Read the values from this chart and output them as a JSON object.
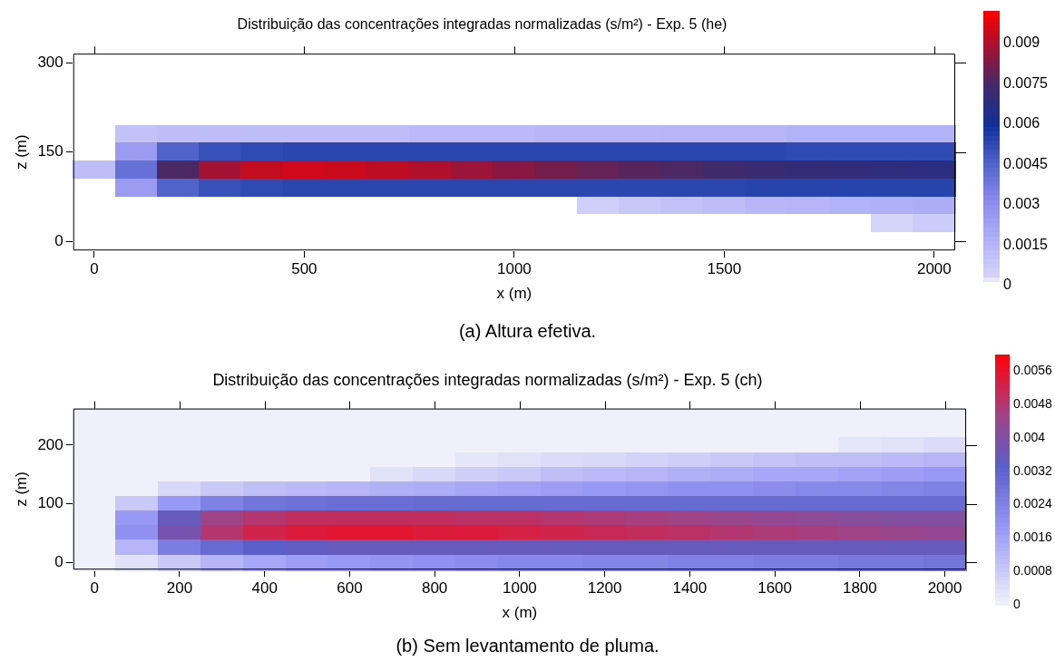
{
  "chart_data": [
    {
      "type": "heatmap",
      "title": "Distribuição das concentrações integradas normalizadas (s/m²) - Exp. 5 (he)",
      "xlabel": "x (m)",
      "ylabel": "z (m)",
      "annotations": [
        "(a) Altura efetiva."
      ],
      "categories": [
        "0",
        null,
        null,
        null,
        null,
        "500",
        null,
        null,
        null,
        null,
        "1000",
        null,
        null,
        null,
        null,
        "1500",
        null,
        null,
        null,
        null,
        "2000"
      ],
      "y_categories": [
        "300",
        null,
        null,
        null,
        null,
        "150",
        null,
        null,
        null,
        null,
        "0"
      ],
      "clim": [
        0,
        0.0102
      ],
      "cticks": [
        0,
        0.0015,
        0.003,
        0.0045,
        0.006,
        0.0075,
        0.009
      ],
      "grid": false,
      "legend": false,
      "cells": [
        [
          0,
          0,
          0,
          0,
          0,
          0,
          0,
          0,
          0,
          0,
          0,
          0,
          0,
          0,
          0,
          0,
          0,
          0,
          0,
          0,
          0
        ],
        [
          0,
          0,
          0,
          0,
          0,
          0,
          0,
          0,
          0,
          0,
          0,
          0,
          0,
          0,
          0,
          0,
          0,
          0,
          0,
          0,
          0
        ],
        [
          0,
          0,
          0,
          0,
          0,
          0,
          0,
          0,
          0,
          0,
          0,
          0,
          0,
          0,
          0,
          0,
          0,
          0,
          0,
          0,
          0
        ],
        [
          0,
          0,
          0,
          0,
          0,
          0,
          0,
          0,
          0,
          0,
          0,
          0,
          0,
          0,
          0,
          0,
          0,
          0,
          0,
          0,
          0
        ],
        [
          0,
          0.001,
          0.0012,
          0.0012,
          0.0012,
          0.0012,
          0.0012,
          0.0012,
          0.0013,
          0.0013,
          0.0013,
          0.0014,
          0.0014,
          0.0014,
          0.0015,
          0.0015,
          0.0015,
          0.0016,
          0.0016,
          0.0016,
          0.0016
        ],
        [
          0,
          0.0025,
          0.0045,
          0.005,
          0.0052,
          0.0053,
          0.0053,
          0.0053,
          0.0053,
          0.0053,
          0.0053,
          0.0053,
          0.0053,
          0.0053,
          0.0053,
          0.0053,
          0.0053,
          0.0052,
          0.0052,
          0.0052,
          0.0052
        ],
        [
          0.0012,
          0.004,
          0.0075,
          0.0088,
          0.0093,
          0.0095,
          0.0094,
          0.0092,
          0.009,
          0.0087,
          0.0084,
          0.0081,
          0.0079,
          0.0077,
          0.0075,
          0.0073,
          0.0071,
          0.007,
          0.0069,
          0.0068,
          0.0067
        ],
        [
          0,
          0.0025,
          0.0045,
          0.005,
          0.0052,
          0.0053,
          0.0053,
          0.0053,
          0.0053,
          0.0053,
          0.0053,
          0.0053,
          0.0053,
          0.0053,
          0.0053,
          0.0053,
          0.0054,
          0.0054,
          0.0054,
          0.0054,
          0.0054
        ],
        [
          0,
          0,
          0,
          0,
          0,
          0,
          0,
          0,
          0,
          0,
          0,
          0,
          0.0005,
          0.0008,
          0.001,
          0.0012,
          0.0014,
          0.0015,
          0.0016,
          0.0017,
          0.0018
        ],
        [
          0,
          0,
          0,
          0,
          0,
          0,
          0,
          0,
          0,
          0,
          0,
          0,
          0,
          0,
          0,
          0,
          0,
          0,
          0,
          0.0003,
          0.0006
        ],
        [
          0,
          0,
          0,
          0,
          0,
          0,
          0,
          0,
          0,
          0,
          0,
          0,
          0,
          0,
          0,
          0,
          0,
          0,
          0,
          0,
          0
        ]
      ]
    },
    {
      "type": "heatmap",
      "title": "Distribuição das concentrações integradas normalizadas (s/m²) - Exp. 5 (ch)",
      "xlabel": "x (m)",
      "ylabel": "z (m)",
      "annotations": [
        "(b) Sem levantamento de pluma."
      ],
      "categories": [
        "0",
        null,
        "200",
        null,
        "400",
        null,
        "600",
        null,
        "800",
        null,
        "1000",
        null,
        "1200",
        null,
        "1400",
        null,
        "1600",
        null,
        "1800",
        null,
        "2000"
      ],
      "y_categories": [
        null,
        null,
        "200",
        null,
        null,
        null,
        "100",
        null,
        null,
        null,
        "0"
      ],
      "clim": [
        0,
        0.006
      ],
      "cticks": [
        0,
        0.0008,
        0.0016,
        0.0024,
        0.0032,
        0.004,
        0.0048,
        0.0056
      ],
      "grid": false,
      "legend": false,
      "cells": [
        [
          0,
          0,
          0,
          0,
          0,
          0,
          0,
          0,
          0,
          0,
          0,
          0,
          0,
          0,
          0,
          0,
          0,
          0,
          0,
          0,
          0
        ],
        [
          0,
          0,
          0,
          0,
          0,
          0,
          0,
          0,
          0,
          0,
          0,
          0,
          0,
          0,
          0,
          0,
          0,
          0,
          0,
          0,
          0
        ],
        [
          0,
          0,
          0,
          0,
          0,
          0,
          0,
          0,
          0,
          0,
          0,
          0,
          0,
          0,
          0,
          0,
          0,
          0,
          0.0002,
          0.0003,
          0.0004
        ],
        [
          0,
          0,
          0,
          0,
          0,
          0,
          0,
          0,
          0,
          0.0002,
          0.0003,
          0.0004,
          0.0005,
          0.0006,
          0.0007,
          0.0008,
          0.0009,
          0.001,
          0.001,
          0.0011,
          0.0012
        ],
        [
          0,
          0,
          0,
          0,
          0,
          0,
          0,
          0.0003,
          0.0005,
          0.0007,
          0.0008,
          0.001,
          0.0011,
          0.0012,
          0.0013,
          0.0014,
          0.0015,
          0.0015,
          0.0016,
          0.0017,
          0.0018
        ],
        [
          0,
          0,
          0.0005,
          0.0008,
          0.001,
          0.0011,
          0.0012,
          0.0013,
          0.0014,
          0.0015,
          0.0016,
          0.0017,
          0.0018,
          0.0019,
          0.002,
          0.002,
          0.0021,
          0.0022,
          0.0022,
          0.0023,
          0.0024
        ],
        [
          0,
          0.0008,
          0.0018,
          0.0024,
          0.0027,
          0.0028,
          0.0029,
          0.0029,
          0.003,
          0.003,
          0.003,
          0.003,
          0.003,
          0.003,
          0.003,
          0.003,
          0.003,
          0.003,
          0.003,
          0.003,
          0.003
        ],
        [
          0,
          0.0018,
          0.0035,
          0.0045,
          0.0048,
          0.005,
          0.005,
          0.005,
          0.005,
          0.0049,
          0.0049,
          0.0048,
          0.0047,
          0.0046,
          0.0045,
          0.0044,
          0.0043,
          0.0042,
          0.0041,
          0.004,
          0.004
        ],
        [
          0,
          0.002,
          0.0038,
          0.0048,
          0.0052,
          0.0054,
          0.0055,
          0.0055,
          0.0054,
          0.0054,
          0.0053,
          0.0052,
          0.0051,
          0.005,
          0.0049,
          0.0048,
          0.0047,
          0.0046,
          0.0045,
          0.0044,
          0.0043
        ],
        [
          0,
          0.0012,
          0.0025,
          0.003,
          0.0033,
          0.0034,
          0.0035,
          0.0035,
          0.0035,
          0.0035,
          0.0035,
          0.0035,
          0.0035,
          0.0035,
          0.0035,
          0.0035,
          0.0035,
          0.0035,
          0.0035,
          0.0035,
          0.0035
        ],
        [
          0,
          0.0003,
          0.0008,
          0.0012,
          0.0015,
          0.0017,
          0.0018,
          0.0019,
          0.002,
          0.0021,
          0.0022,
          0.0022,
          0.0023,
          0.0023,
          0.0024,
          0.0024,
          0.0025,
          0.0025,
          0.0026,
          0.0026,
          0.0027
        ]
      ]
    }
  ]
}
